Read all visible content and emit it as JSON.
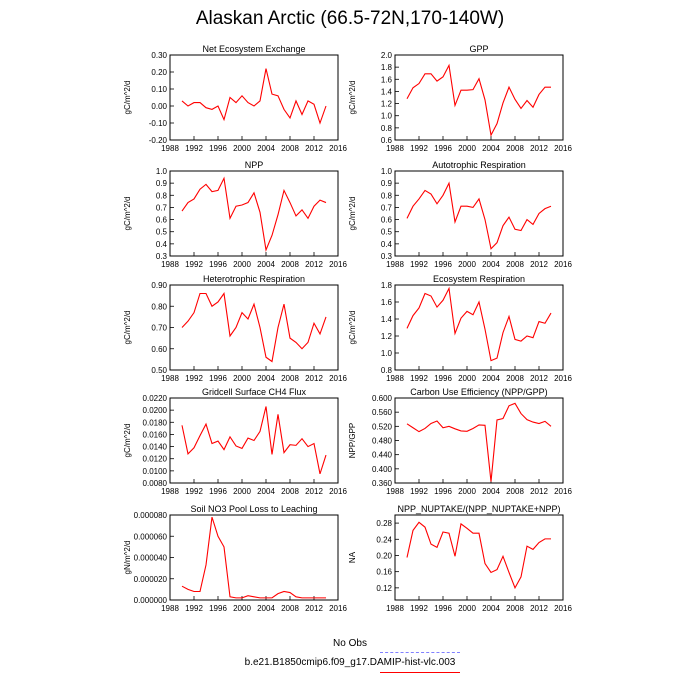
{
  "title": "Alaskan Arctic (66.5-72N,170-140W)",
  "legend": {
    "items": [
      {
        "label": "No Obs",
        "color": "#8080ff",
        "dash": true
      },
      {
        "label": "b.e21.B1850cmip6.f09_g17.DAMIP-hist-vlc.003",
        "color": "#ff0000",
        "dash": false
      }
    ]
  },
  "chart_data": [
    {
      "type": "line",
      "title": "Net Ecosystem Exchange",
      "ylabel": "gC/m^2/d",
      "xlim": [
        1988,
        2016
      ],
      "ylim": [
        -0.2,
        0.3
      ],
      "xticks": [
        "1988",
        "1992",
        "1996",
        "2000",
        "2004",
        "2008",
        "2012",
        "2016"
      ],
      "yticks": [
        "-0.20",
        "-0.10",
        "0.00",
        "0.10",
        "0.20",
        "0.30"
      ],
      "x": [
        1990,
        1991,
        1992,
        1993,
        1994,
        1995,
        1996,
        1997,
        1998,
        1999,
        2000,
        2001,
        2002,
        2003,
        2004,
        2005,
        2006,
        2007,
        2008,
        2009,
        2010,
        2011,
        2012,
        2013,
        2014
      ],
      "series": [
        {
          "color": "#ff0000",
          "values": [
            0.03,
            0.0,
            0.02,
            0.02,
            -0.01,
            -0.02,
            0.0,
            -0.08,
            0.05,
            0.02,
            0.06,
            0.02,
            0.0,
            0.03,
            0.22,
            0.07,
            0.06,
            -0.02,
            -0.07,
            0.03,
            -0.05,
            0.03,
            0.01,
            -0.1,
            0.0
          ]
        }
      ]
    },
    {
      "type": "line",
      "title": "GPP",
      "ylabel": "gC/m^2/d",
      "xlim": [
        1988,
        2016
      ],
      "ylim": [
        0.6,
        2.0
      ],
      "xticks": [
        "1988",
        "1992",
        "1996",
        "2000",
        "2004",
        "2008",
        "2012",
        "2016"
      ],
      "yticks": [
        "0.6",
        "0.8",
        "1.0",
        "1.2",
        "1.4",
        "1.6",
        "1.8",
        "2.0"
      ],
      "x": [
        1990,
        1991,
        1992,
        1993,
        1994,
        1995,
        1996,
        1997,
        1998,
        1999,
        2000,
        2001,
        2002,
        2003,
        2004,
        2005,
        2006,
        2007,
        2008,
        2009,
        2010,
        2011,
        2012,
        2013,
        2014
      ],
      "series": [
        {
          "color": "#ff0000",
          "values": [
            1.28,
            1.46,
            1.53,
            1.69,
            1.69,
            1.57,
            1.64,
            1.83,
            1.17,
            1.42,
            1.42,
            1.43,
            1.61,
            1.26,
            0.68,
            0.87,
            1.21,
            1.47,
            1.27,
            1.12,
            1.25,
            1.14,
            1.35,
            1.47,
            1.47
          ]
        }
      ]
    },
    {
      "type": "line",
      "title": "NPP",
      "ylabel": "gC/m^2/d",
      "xlim": [
        1988,
        2016
      ],
      "ylim": [
        0.3,
        1.0
      ],
      "xticks": [
        "1988",
        "1992",
        "1996",
        "2000",
        "2004",
        "2008",
        "2012",
        "2016"
      ],
      "yticks": [
        "0.3",
        "0.4",
        "0.5",
        "0.6",
        "0.7",
        "0.8",
        "0.9",
        "1.0"
      ],
      "x": [
        1990,
        1991,
        1992,
        1993,
        1994,
        1995,
        1996,
        1997,
        1998,
        1999,
        2000,
        2001,
        2002,
        2003,
        2004,
        2005,
        2006,
        2007,
        2008,
        2009,
        2010,
        2011,
        2012,
        2013,
        2014
      ],
      "series": [
        {
          "color": "#ff0000",
          "values": [
            0.67,
            0.74,
            0.77,
            0.85,
            0.89,
            0.83,
            0.84,
            0.94,
            0.61,
            0.71,
            0.72,
            0.74,
            0.82,
            0.66,
            0.35,
            0.47,
            0.64,
            0.84,
            0.74,
            0.63,
            0.68,
            0.61,
            0.71,
            0.76,
            0.74
          ]
        }
      ]
    },
    {
      "type": "line",
      "title": "Autotrophic Respiration",
      "ylabel": "gC/m^2/d",
      "xlim": [
        1988,
        2016
      ],
      "ylim": [
        0.3,
        1.0
      ],
      "xticks": [
        "1988",
        "1992",
        "1996",
        "2000",
        "2004",
        "2008",
        "2012",
        "2016"
      ],
      "yticks": [
        "0.3",
        "0.4",
        "0.5",
        "0.6",
        "0.7",
        "0.8",
        "0.9",
        "1.0"
      ],
      "x": [
        1990,
        1991,
        1992,
        1993,
        1994,
        1995,
        1996,
        1997,
        1998,
        1999,
        2000,
        2001,
        2002,
        2003,
        2004,
        2005,
        2006,
        2007,
        2008,
        2009,
        2010,
        2011,
        2012,
        2013,
        2014
      ],
      "series": [
        {
          "color": "#ff0000",
          "values": [
            0.61,
            0.71,
            0.77,
            0.84,
            0.81,
            0.73,
            0.8,
            0.9,
            0.58,
            0.71,
            0.71,
            0.7,
            0.77,
            0.6,
            0.36,
            0.41,
            0.55,
            0.62,
            0.52,
            0.51,
            0.6,
            0.56,
            0.65,
            0.69,
            0.71
          ]
        }
      ]
    },
    {
      "type": "line",
      "title": "Heterotrophic Respiration",
      "ylabel": "gC/m^2/d",
      "xlim": [
        1988,
        2016
      ],
      "ylim": [
        0.5,
        0.9
      ],
      "xticks": [
        "1988",
        "1992",
        "1996",
        "2000",
        "2004",
        "2008",
        "2012",
        "2016"
      ],
      "yticks": [
        "0.50",
        "0.60",
        "0.70",
        "0.80",
        "0.90"
      ],
      "x": [
        1990,
        1991,
        1992,
        1993,
        1994,
        1995,
        1996,
        1997,
        1998,
        1999,
        2000,
        2001,
        2002,
        2003,
        2004,
        2005,
        2006,
        2007,
        2008,
        2009,
        2010,
        2011,
        2012,
        2013,
        2014
      ],
      "series": [
        {
          "color": "#ff0000",
          "values": [
            0.7,
            0.73,
            0.77,
            0.86,
            0.86,
            0.8,
            0.82,
            0.86,
            0.66,
            0.7,
            0.77,
            0.74,
            0.81,
            0.7,
            0.56,
            0.54,
            0.7,
            0.81,
            0.65,
            0.63,
            0.6,
            0.63,
            0.72,
            0.67,
            0.75
          ]
        }
      ]
    },
    {
      "type": "line",
      "title": "Ecosystem Respiration",
      "ylabel": "gC/m^2/d",
      "xlim": [
        1988,
        2016
      ],
      "ylim": [
        0.8,
        1.8
      ],
      "xticks": [
        "1988",
        "1992",
        "1996",
        "2000",
        "2004",
        "2008",
        "2012",
        "2016"
      ],
      "yticks": [
        "0.8",
        "1.0",
        "1.2",
        "1.4",
        "1.6",
        "1.8"
      ],
      "x": [
        1990,
        1991,
        1992,
        1993,
        1994,
        1995,
        1996,
        1997,
        1998,
        1999,
        2000,
        2001,
        2002,
        2003,
        2004,
        2005,
        2006,
        2007,
        2008,
        2009,
        2010,
        2011,
        2012,
        2013,
        2014
      ],
      "series": [
        {
          "color": "#ff0000",
          "values": [
            1.29,
            1.44,
            1.53,
            1.7,
            1.67,
            1.54,
            1.62,
            1.76,
            1.23,
            1.41,
            1.49,
            1.45,
            1.6,
            1.28,
            0.91,
            0.94,
            1.24,
            1.43,
            1.16,
            1.14,
            1.2,
            1.18,
            1.37,
            1.35,
            1.47
          ]
        }
      ]
    },
    {
      "type": "line",
      "title": "Gridcell Surface CH4 Flux",
      "ylabel": "gC/m^2/d",
      "xlim": [
        1988,
        2016
      ],
      "ylim": [
        0.008,
        0.022
      ],
      "xticks": [
        "1988",
        "1992",
        "1996",
        "2000",
        "2004",
        "2008",
        "2012",
        "2016"
      ],
      "yticks": [
        "0.0080",
        "0.0100",
        "0.0120",
        "0.0140",
        "0.0160",
        "0.0180",
        "0.0200",
        "0.0220"
      ],
      "x": [
        1990,
        1991,
        1992,
        1993,
        1994,
        1995,
        1996,
        1997,
        1998,
        1999,
        2000,
        2001,
        2002,
        2003,
        2004,
        2005,
        2006,
        2007,
        2008,
        2009,
        2010,
        2011,
        2012,
        2013,
        2014
      ],
      "series": [
        {
          "color": "#ff0000",
          "values": [
            0.0175,
            0.0128,
            0.0138,
            0.0158,
            0.0177,
            0.0145,
            0.0149,
            0.0135,
            0.0156,
            0.0141,
            0.0137,
            0.0154,
            0.015,
            0.0165,
            0.0206,
            0.0127,
            0.0193,
            0.013,
            0.0143,
            0.0142,
            0.0153,
            0.014,
            0.0145,
            0.0095,
            0.0126
          ]
        }
      ]
    },
    {
      "type": "line",
      "title": "Carbon Use Efficiency (NPP/GPP)",
      "ylabel": "NPP/GPP",
      "xlim": [
        1988,
        2016
      ],
      "ylim": [
        0.36,
        0.6
      ],
      "xticks": [
        "1988",
        "1992",
        "1996",
        "2000",
        "2004",
        "2008",
        "2012",
        "2016"
      ],
      "yticks": [
        "0.360",
        "0.400",
        "0.440",
        "0.480",
        "0.520",
        "0.560",
        "0.600"
      ],
      "x": [
        1990,
        1991,
        1992,
        1993,
        1994,
        1995,
        1996,
        1997,
        1998,
        1999,
        2000,
        2001,
        2002,
        2003,
        2004,
        2005,
        2006,
        2007,
        2008,
        2009,
        2010,
        2011,
        2012,
        2013,
        2014
      ],
      "series": [
        {
          "color": "#ff0000",
          "values": [
            0.527,
            0.516,
            0.505,
            0.514,
            0.528,
            0.535,
            0.516,
            0.52,
            0.513,
            0.507,
            0.506,
            0.514,
            0.524,
            0.523,
            0.364,
            0.538,
            0.542,
            0.578,
            0.585,
            0.556,
            0.539,
            0.532,
            0.528,
            0.534,
            0.52
          ]
        }
      ]
    },
    {
      "type": "line",
      "title": "Soil NO3 Pool Loss to Leaching",
      "ylabel": "gN/m^2/d",
      "xlim": [
        1988,
        2016
      ],
      "ylim": [
        0,
        8e-05
      ],
      "xticks": [
        "1988",
        "1992",
        "1996",
        "2000",
        "2004",
        "2008",
        "2012",
        "2016"
      ],
      "yticks": [
        "0.000000",
        "0.000020",
        "0.000040",
        "0.000060",
        "0.000080"
      ],
      "x": [
        1990,
        1991,
        1992,
        1993,
        1994,
        1995,
        1996,
        1997,
        1998,
        1999,
        2000,
        2001,
        2002,
        2003,
        2004,
        2005,
        2006,
        2007,
        2008,
        2009,
        2010,
        2011,
        2012,
        2013,
        2014
      ],
      "series": [
        {
          "color": "#ff0000",
          "values": [
            1.3e-05,
            1e-05,
            8e-06,
            8e-06,
            3.3e-05,
            7.8e-05,
            6e-05,
            5e-05,
            3e-06,
            2e-06,
            2e-06,
            4e-06,
            3e-06,
            2e-06,
            2e-06,
            2e-06,
            6e-06,
            8e-06,
            7e-06,
            3e-06,
            2e-06,
            2e-06,
            2e-06,
            2e-06,
            2e-06
          ]
        }
      ]
    },
    {
      "type": "line",
      "title": "NPP_NUPTAKE/(NPP_NUPTAKE+NPP)",
      "ylabel": "NA",
      "xlim": [
        1988,
        2016
      ],
      "ylim": [
        0.09,
        0.3
      ],
      "xticks": [
        "1988",
        "1992",
        "1996",
        "2000",
        "2004",
        "2008",
        "2012",
        "2016"
      ],
      "yticks": [
        "0.12",
        "0.16",
        "0.20",
        "0.24",
        "0.28"
      ],
      "x": [
        1990,
        1991,
        1992,
        1993,
        1994,
        1995,
        1996,
        1997,
        1998,
        1999,
        2000,
        2001,
        2002,
        2003,
        2004,
        2005,
        2006,
        2007,
        2008,
        2009,
        2010,
        2011,
        2012,
        2013,
        2014
      ],
      "series": [
        {
          "color": "#ff0000",
          "values": [
            0.195,
            0.262,
            0.282,
            0.27,
            0.228,
            0.22,
            0.258,
            0.255,
            0.198,
            0.278,
            0.267,
            0.255,
            0.255,
            0.18,
            0.158,
            0.165,
            0.198,
            0.158,
            0.12,
            0.147,
            0.223,
            0.215,
            0.232,
            0.241,
            0.241
          ]
        }
      ]
    }
  ]
}
